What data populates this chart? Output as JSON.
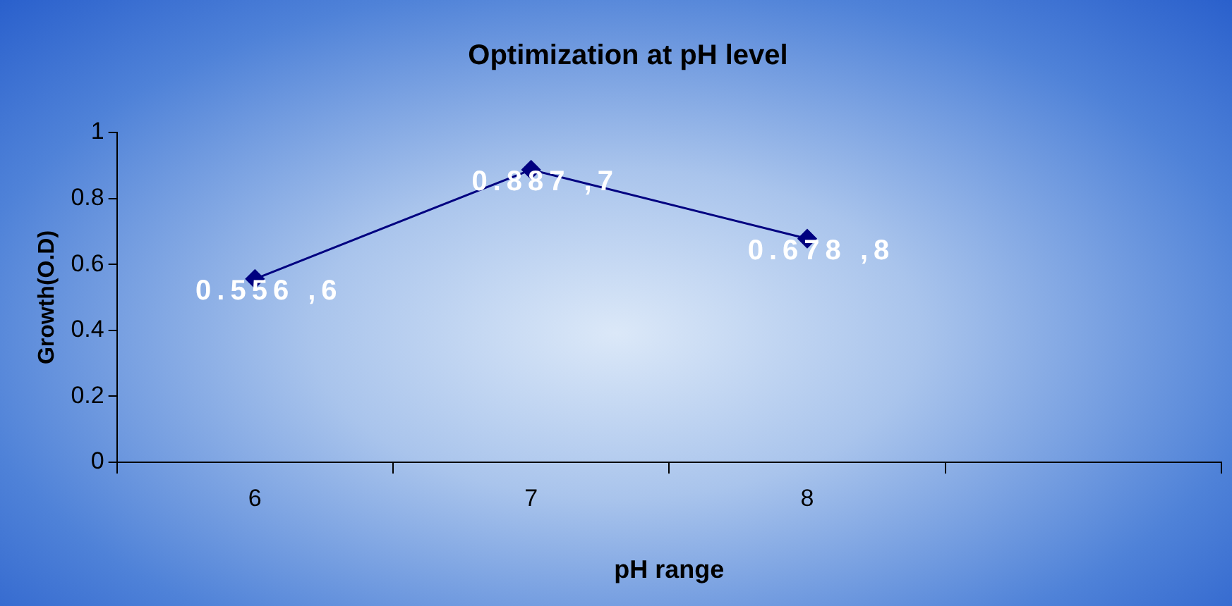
{
  "chart_data": {
    "type": "line",
    "title": "Optimization at pH level",
    "xlabel": "pH range",
    "ylabel": "Growth(O.D)",
    "categories": [
      "6",
      "7",
      "8",
      null
    ],
    "series": [
      {
        "color": "#000080",
        "values": [
          0.556,
          0.887,
          0.678,
          null
        ],
        "value_labels": [
          "0.556 ,6",
          "0.887 ,7",
          "0.678 ,8",
          null
        ]
      }
    ],
    "ylim": [
      0,
      1
    ],
    "yticks": [
      0,
      0.2,
      0.4,
      0.6,
      0.8,
      1
    ],
    "grid": false,
    "legend": false,
    "marker": "diamond",
    "line_style": "solid"
  }
}
